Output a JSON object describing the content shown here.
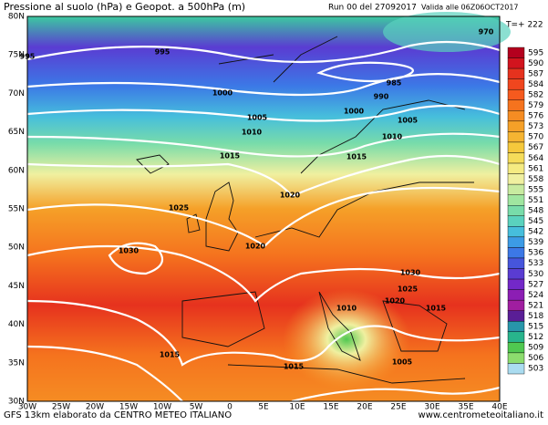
{
  "header": {
    "title": "Pressione al suolo (hPa) e Geopot. a 500hPa (m)",
    "run": "Run 00 del 27092017",
    "valid": "Valida alle 06Z06OCT2017",
    "step": "T=+ 222"
  },
  "footer": {
    "model": "GFS 13km elaborato da CENTRO METEO ITALIANO",
    "site": "www.centrometeoitaliano.it"
  },
  "map": {
    "lat_labels": [
      "80N",
      "75N",
      "70N",
      "65N",
      "60N",
      "55N",
      "50N",
      "45N",
      "40N",
      "35N",
      "30N"
    ],
    "lon_labels": [
      "30W",
      "25W",
      "20W",
      "15W",
      "10W",
      "5W",
      "0",
      "5E",
      "10E",
      "15E",
      "20E",
      "25E",
      "30E",
      "35E",
      "40E"
    ],
    "isobar_labels": [
      "995",
      "995",
      "1000",
      "1005",
      "1010",
      "1015",
      "1025",
      "1020",
      "1020",
      "1030",
      "1015",
      "1000",
      "990",
      "985",
      "1005",
      "1010",
      "1015",
      "970",
      "1030",
      "1025",
      "1020",
      "1010",
      "1015",
      "1015",
      "1005"
    ]
  },
  "colorbar": {
    "levels": [
      595,
      590,
      587,
      584,
      582,
      579,
      576,
      573,
      570,
      567,
      564,
      561,
      558,
      555,
      551,
      548,
      545,
      542,
      539,
      536,
      533,
      530,
      527,
      524,
      521,
      518,
      515,
      512,
      509,
      506,
      503
    ],
    "colors": [
      "#b4001e",
      "#d2141e",
      "#e6321e",
      "#f0461e",
      "#f55a1e",
      "#f5731e",
      "#f58c23",
      "#f5a028",
      "#f5b432",
      "#f5c83c",
      "#f5dc5a",
      "#f5eb82",
      "#f0f0a0",
      "#c8eba0",
      "#a0e6a0",
      "#78dcaa",
      "#5ad2be",
      "#46bedc",
      "#3c9be6",
      "#3c78e6",
      "#4655dc",
      "#5a3cd2",
      "#7328c8",
      "#8c1eb4",
      "#a01ea0",
      "#5a1e96",
      "#2896aa",
      "#28b48c",
      "#50c850",
      "#8cdc6e",
      "#aadcf0"
    ]
  }
}
